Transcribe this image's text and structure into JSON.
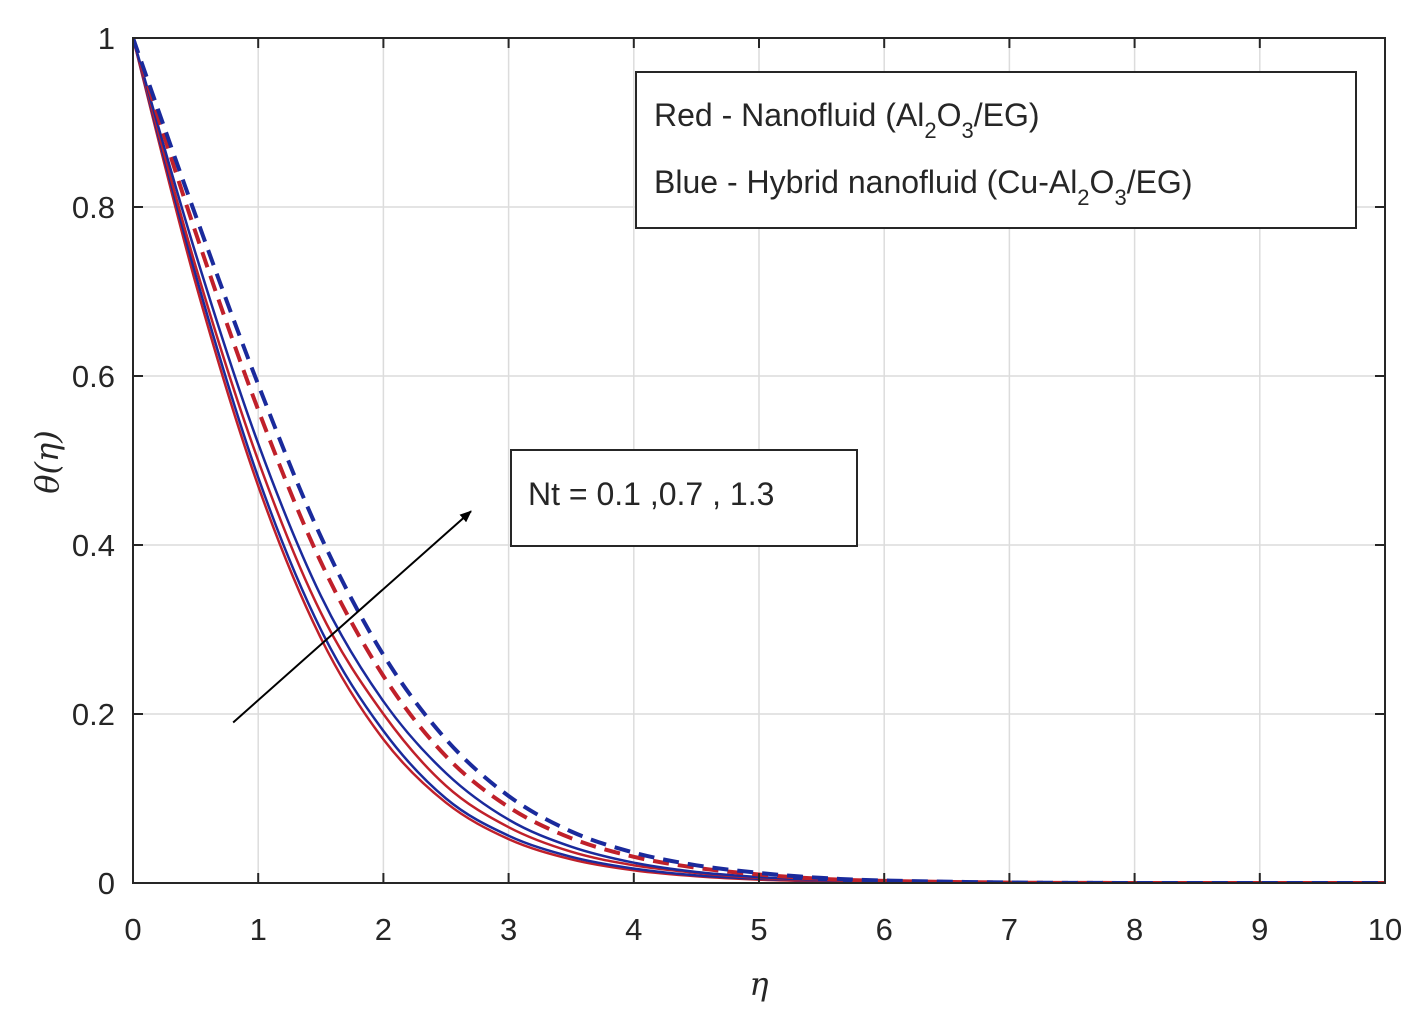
{
  "chart_data": {
    "type": "line",
    "xlabel": "η",
    "ylabel": "θ(η)",
    "xlim": [
      0,
      10
    ],
    "ylim": [
      0,
      1
    ],
    "xticks": [
      "0",
      "1",
      "2",
      "3",
      "4",
      "5",
      "6",
      "7",
      "8",
      "9",
      "10"
    ],
    "yticks": [
      "0",
      "0.2",
      "0.4",
      "0.6",
      "0.8",
      "1"
    ],
    "grid": true,
    "legend": {
      "placement": "top-right",
      "lines": [
        {
          "pre": "Red - Nanofluid (Al",
          "s1": "2",
          "mid": "O",
          "s2": "3",
          "post": "/EG)"
        },
        {
          "pre": "Blue - Hybrid nanofluid (Cu-Al",
          "s1": "2",
          "mid": "O",
          "s2": "3",
          "post": "/EG)"
        }
      ]
    },
    "annotation": {
      "text": "Nt = 0.1 ,0.7 , 1.3",
      "arrow_from": [
        0.8,
        0.19
      ],
      "arrow_to": [
        2.7,
        0.44
      ]
    },
    "colors": {
      "red": "#c0202a",
      "blue": "#1a2a9c"
    },
    "series": [
      {
        "color": "red",
        "style": "solid",
        "x": [
          0,
          0.5,
          1,
          1.5,
          2,
          2.5,
          3,
          3.5,
          4,
          4.5,
          5,
          5.5,
          6,
          7,
          8,
          9,
          10
        ],
        "y": [
          1,
          0.71,
          0.47,
          0.29,
          0.17,
          0.095,
          0.052,
          0.028,
          0.015,
          0.008,
          0.004,
          0.002,
          0.001,
          0,
          0,
          0,
          0
        ]
      },
      {
        "color": "blue",
        "style": "solid",
        "x": [
          0,
          0.5,
          1,
          1.5,
          2,
          2.5,
          3,
          3.5,
          4,
          4.5,
          5,
          5.5,
          6,
          7,
          8,
          9,
          10
        ],
        "y": [
          1,
          0.72,
          0.48,
          0.3,
          0.18,
          0.1,
          0.056,
          0.031,
          0.017,
          0.009,
          0.005,
          0.0025,
          0.001,
          0,
          0,
          0,
          0
        ]
      },
      {
        "color": "red",
        "style": "solid",
        "x": [
          0,
          0.5,
          1,
          1.5,
          2,
          2.5,
          3,
          3.5,
          4,
          4.5,
          5,
          5.5,
          6,
          7,
          8,
          9,
          10
        ],
        "y": [
          1,
          0.73,
          0.5,
          0.32,
          0.2,
          0.115,
          0.066,
          0.037,
          0.021,
          0.012,
          0.006,
          0.003,
          0.0015,
          0,
          0,
          0,
          0
        ]
      },
      {
        "color": "blue",
        "style": "solid",
        "x": [
          0,
          0.5,
          1,
          1.5,
          2,
          2.5,
          3,
          3.5,
          4,
          4.5,
          5,
          5.5,
          6,
          7,
          8,
          9,
          10
        ],
        "y": [
          1,
          0.745,
          0.52,
          0.34,
          0.215,
          0.13,
          0.075,
          0.043,
          0.024,
          0.013,
          0.007,
          0.0035,
          0.0018,
          0,
          0,
          0,
          0
        ]
      },
      {
        "color": "red",
        "style": "dashed",
        "x": [
          0,
          0.5,
          1,
          1.5,
          2,
          2.5,
          3,
          3.5,
          4,
          4.5,
          5,
          5.5,
          6,
          7,
          8,
          9,
          10
        ],
        "y": [
          1,
          0.77,
          0.56,
          0.38,
          0.245,
          0.15,
          0.09,
          0.053,
          0.031,
          0.018,
          0.01,
          0.005,
          0.0025,
          0.0005,
          0,
          0,
          0
        ]
      },
      {
        "color": "blue",
        "style": "dashed",
        "x": [
          0,
          0.5,
          1,
          1.5,
          2,
          2.5,
          3,
          3.5,
          4,
          4.5,
          5,
          5.5,
          6,
          7,
          8,
          9,
          10
        ],
        "y": [
          1,
          0.79,
          0.59,
          0.41,
          0.27,
          0.17,
          0.103,
          0.061,
          0.036,
          0.021,
          0.012,
          0.006,
          0.003,
          0.0006,
          0,
          0,
          0
        ]
      }
    ]
  }
}
